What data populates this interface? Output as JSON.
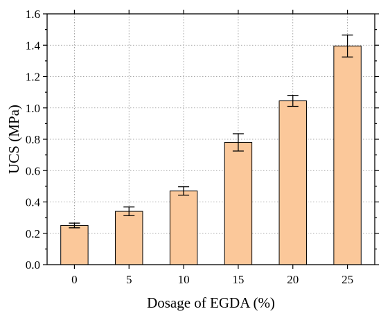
{
  "chart_data": {
    "type": "bar",
    "title": "",
    "xlabel": "Dosage of EGDA (%)",
    "ylabel": "UCS (MPa)",
    "categories": [
      "0",
      "5",
      "10",
      "15",
      "20",
      "25"
    ],
    "values": [
      0.25,
      0.34,
      0.47,
      0.78,
      1.045,
      1.395
    ],
    "errors": [
      0.015,
      0.028,
      0.027,
      0.055,
      0.035,
      0.07
    ],
    "ylim": [
      0,
      1.6
    ],
    "yticks": [
      "0.0",
      "0.2",
      "0.4",
      "0.6",
      "0.8",
      "1.0",
      "1.2",
      "1.4",
      "1.6"
    ],
    "grid": true,
    "bar_color": "#FBC89A",
    "edge_color": "#000000"
  }
}
